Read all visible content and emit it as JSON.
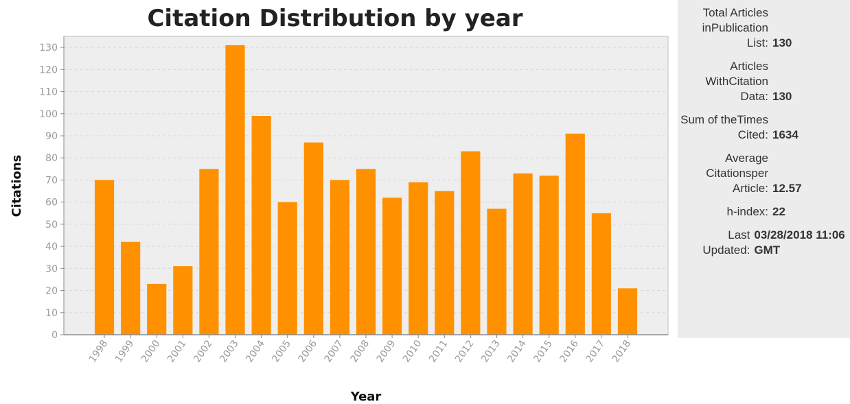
{
  "chart_data": {
    "type": "bar",
    "title": "Citation Distribution by year",
    "xlabel": "Year",
    "ylabel": "Citations",
    "categories": [
      "1998",
      "1999",
      "2000",
      "2001",
      "2002",
      "2003",
      "2004",
      "2005",
      "2006",
      "2007",
      "2008",
      "2009",
      "2010",
      "2011",
      "2012",
      "2013",
      "2014",
      "2015",
      "2016",
      "2017",
      "2018"
    ],
    "values": [
      70,
      42,
      23,
      31,
      75,
      131,
      99,
      60,
      87,
      70,
      75,
      62,
      69,
      65,
      83,
      57,
      73,
      72,
      91,
      55,
      21
    ],
    "ylim": [
      0,
      135
    ],
    "yticks": [
      0,
      10,
      20,
      30,
      40,
      50,
      60,
      70,
      80,
      90,
      100,
      110,
      120,
      130
    ],
    "grid": true,
    "bar_color": "#ff9100",
    "plot_background": "#eeeeee"
  },
  "stats": [
    {
      "label": "Total Articles inPublication List:",
      "value": "130"
    },
    {
      "label": "Articles WithCitation Data:",
      "value": "130"
    },
    {
      "label": "Sum of theTimes Cited:",
      "value": "1634"
    },
    {
      "label": "Average Citationsper Article:",
      "value": "12.57"
    },
    {
      "label": "h-index:",
      "value": "22"
    },
    {
      "label": "Last Updated:",
      "value": "03/28/2018 11:06 GMT"
    }
  ]
}
